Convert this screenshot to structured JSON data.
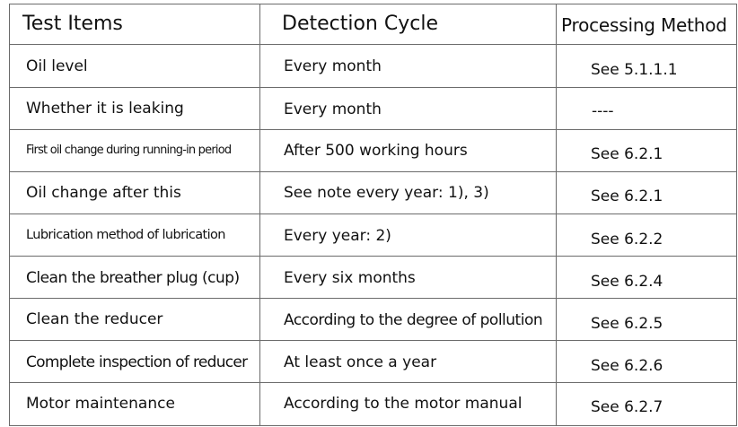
{
  "table": {
    "headers": [
      "Test Items",
      "Detection Cycle",
      "Processing Method"
    ],
    "rows": [
      [
        "Oil level",
        "Every month",
        "See 5.1.1.1"
      ],
      [
        "Whether it is leaking",
        "Every month",
        "----"
      ],
      [
        "First oil change during running-in period",
        "After 500 working hours",
        "See 6.2.1"
      ],
      [
        "Oil change after this",
        "See note every year: 1), 3)",
        "See 6.2.1"
      ],
      [
        "Lubrication method of lubrication",
        "Every year: 2)",
        "See 6.2.2"
      ],
      [
        "Clean the breather plug (cup)",
        "Every six months",
        "See 6.2.4"
      ],
      [
        "Clean the reducer",
        "According to the degree of pollution",
        "See 6.2.5"
      ],
      [
        "Complete inspection of reducer",
        "At least once a year",
        "See 6.2.6"
      ],
      [
        "Motor maintenance",
        "According to the motor manual",
        "See 6.2.7"
      ]
    ]
  }
}
